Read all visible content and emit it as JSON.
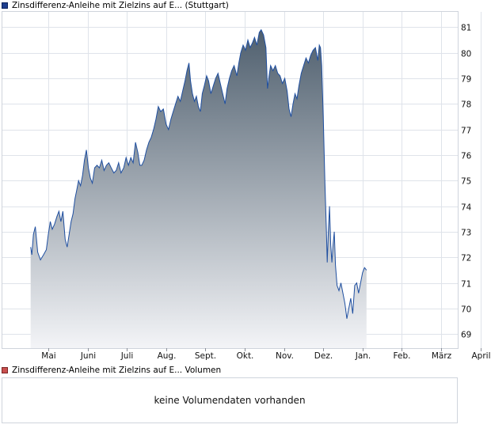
{
  "legend": {
    "price": "Zinsdifferenz-Anleihe mit Zielzins auf E... (Stuttgart)",
    "volume": "Zinsdifferenz-Anleihe mit Zielzins auf E... Volumen"
  },
  "volume_panel": {
    "message": "keine Volumendaten vorhanden"
  },
  "colors": {
    "line": "#1f4fa0",
    "fill_top": "#4f5f6e",
    "fill_bottom": "#f3f4f7",
    "grid": "#dfe3ea",
    "price_swatch": "#1f3f8f",
    "volume_swatch": "#c9504f"
  },
  "chart_data": {
    "type": "area",
    "categories": [
      "Mai",
      "Juni",
      "Juli",
      "Aug.",
      "Sept.",
      "Okt.",
      "Nov.",
      "Dez.",
      "Jan.",
      "Feb.",
      "März",
      "April"
    ],
    "yticks": [
      69,
      70,
      71,
      72,
      73,
      74,
      75,
      76,
      77,
      78,
      79,
      80,
      81
    ],
    "ylim": [
      68.45,
      81.6
    ],
    "y_axis_position": "right",
    "grid": true,
    "series": [
      {
        "points": [
          [
            -0.45,
            72.4
          ],
          [
            -0.42,
            72.1
          ],
          [
            -0.38,
            72.9
          ],
          [
            -0.33,
            73.2
          ],
          [
            -0.27,
            72.2
          ],
          [
            -0.2,
            71.9
          ],
          [
            -0.12,
            72.1
          ],
          [
            -0.05,
            72.3
          ],
          [
            0.0,
            72.9
          ],
          [
            0.05,
            73.4
          ],
          [
            0.1,
            73.1
          ],
          [
            0.16,
            73.3
          ],
          [
            0.22,
            73.6
          ],
          [
            0.27,
            73.8
          ],
          [
            0.32,
            73.4
          ],
          [
            0.37,
            73.8
          ],
          [
            0.43,
            72.7
          ],
          [
            0.48,
            72.4
          ],
          [
            0.53,
            72.9
          ],
          [
            0.58,
            73.4
          ],
          [
            0.63,
            73.7
          ],
          [
            0.68,
            74.3
          ],
          [
            0.72,
            74.6
          ],
          [
            0.77,
            75.0
          ],
          [
            0.82,
            74.8
          ],
          [
            0.87,
            75.2
          ],
          [
            0.92,
            75.8
          ],
          [
            0.97,
            76.2
          ],
          [
            1.02,
            75.5
          ],
          [
            1.07,
            75.1
          ],
          [
            1.12,
            74.9
          ],
          [
            1.18,
            75.5
          ],
          [
            1.24,
            75.6
          ],
          [
            1.3,
            75.5
          ],
          [
            1.36,
            75.8
          ],
          [
            1.42,
            75.4
          ],
          [
            1.48,
            75.6
          ],
          [
            1.54,
            75.7
          ],
          [
            1.6,
            75.5
          ],
          [
            1.67,
            75.3
          ],
          [
            1.73,
            75.4
          ],
          [
            1.79,
            75.7
          ],
          [
            1.85,
            75.3
          ],
          [
            1.92,
            75.5
          ],
          [
            1.98,
            75.9
          ],
          [
            2.04,
            75.6
          ],
          [
            2.1,
            75.9
          ],
          [
            2.16,
            75.7
          ],
          [
            2.22,
            76.5
          ],
          [
            2.28,
            76.1
          ],
          [
            2.33,
            75.6
          ],
          [
            2.38,
            75.6
          ],
          [
            2.44,
            75.8
          ],
          [
            2.5,
            76.2
          ],
          [
            2.56,
            76.5
          ],
          [
            2.62,
            76.7
          ],
          [
            2.68,
            77.0
          ],
          [
            2.74,
            77.4
          ],
          [
            2.8,
            77.9
          ],
          [
            2.86,
            77.7
          ],
          [
            2.93,
            77.8
          ],
          [
            3.0,
            77.2
          ],
          [
            3.06,
            77.0
          ],
          [
            3.12,
            77.4
          ],
          [
            3.18,
            77.7
          ],
          [
            3.24,
            78.0
          ],
          [
            3.3,
            78.3
          ],
          [
            3.36,
            78.1
          ],
          [
            3.42,
            78.5
          ],
          [
            3.48,
            78.9
          ],
          [
            3.53,
            79.3
          ],
          [
            3.58,
            79.6
          ],
          [
            3.62,
            78.9
          ],
          [
            3.67,
            78.4
          ],
          [
            3.72,
            78.1
          ],
          [
            3.77,
            78.3
          ],
          [
            3.82,
            77.9
          ],
          [
            3.87,
            77.7
          ],
          [
            3.92,
            78.4
          ],
          [
            3.97,
            78.7
          ],
          [
            4.03,
            79.1
          ],
          [
            4.08,
            78.9
          ],
          [
            4.14,
            78.4
          ],
          [
            4.2,
            78.7
          ],
          [
            4.26,
            79.0
          ],
          [
            4.32,
            79.2
          ],
          [
            4.38,
            78.8
          ],
          [
            4.44,
            78.4
          ],
          [
            4.5,
            78.0
          ],
          [
            4.55,
            78.6
          ],
          [
            4.61,
            79.0
          ],
          [
            4.67,
            79.3
          ],
          [
            4.73,
            79.5
          ],
          [
            4.8,
            79.1
          ],
          [
            4.85,
            79.6
          ],
          [
            4.9,
            80.0
          ],
          [
            4.96,
            80.3
          ],
          [
            5.02,
            80.1
          ],
          [
            5.08,
            80.5
          ],
          [
            5.14,
            80.2
          ],
          [
            5.2,
            80.4
          ],
          [
            5.25,
            80.6
          ],
          [
            5.31,
            80.3
          ],
          [
            5.37,
            80.8
          ],
          [
            5.42,
            80.9
          ],
          [
            5.48,
            80.7
          ],
          [
            5.54,
            80.2
          ],
          [
            5.58,
            78.6
          ],
          [
            5.62,
            79.1
          ],
          [
            5.66,
            79.5
          ],
          [
            5.72,
            79.3
          ],
          [
            5.78,
            79.5
          ],
          [
            5.84,
            79.2
          ],
          [
            5.9,
            79.1
          ],
          [
            5.96,
            78.8
          ],
          [
            6.02,
            79.0
          ],
          [
            6.08,
            78.5
          ],
          [
            6.13,
            77.8
          ],
          [
            6.18,
            77.5
          ],
          [
            6.23,
            78.0
          ],
          [
            6.28,
            78.4
          ],
          [
            6.33,
            78.2
          ],
          [
            6.38,
            78.7
          ],
          [
            6.44,
            79.2
          ],
          [
            6.5,
            79.5
          ],
          [
            6.56,
            79.8
          ],
          [
            6.62,
            79.6
          ],
          [
            6.68,
            79.9
          ],
          [
            6.74,
            80.1
          ],
          [
            6.8,
            80.2
          ],
          [
            6.86,
            79.7
          ],
          [
            6.9,
            80.3
          ],
          [
            6.93,
            80.2
          ],
          [
            6.96,
            79.5
          ],
          [
            7.0,
            77.5
          ],
          [
            7.04,
            75.0
          ],
          [
            7.08,
            73.0
          ],
          [
            7.1,
            71.8
          ],
          [
            7.13,
            73.0
          ],
          [
            7.16,
            74.0
          ],
          [
            7.19,
            72.5
          ],
          [
            7.22,
            71.8
          ],
          [
            7.25,
            72.5
          ],
          [
            7.28,
            73.0
          ],
          [
            7.31,
            71.7
          ],
          [
            7.35,
            70.9
          ],
          [
            7.4,
            70.7
          ],
          [
            7.45,
            71.0
          ],
          [
            7.5,
            70.6
          ],
          [
            7.55,
            70.2
          ],
          [
            7.6,
            69.6
          ],
          [
            7.65,
            70.0
          ],
          [
            7.7,
            70.4
          ],
          [
            7.75,
            69.8
          ],
          [
            7.8,
            70.9
          ],
          [
            7.85,
            71.0
          ],
          [
            7.9,
            70.6
          ],
          [
            7.95,
            71.0
          ],
          [
            8.0,
            71.4
          ],
          [
            8.05,
            71.6
          ],
          [
            8.1,
            71.5
          ]
        ]
      }
    ]
  }
}
